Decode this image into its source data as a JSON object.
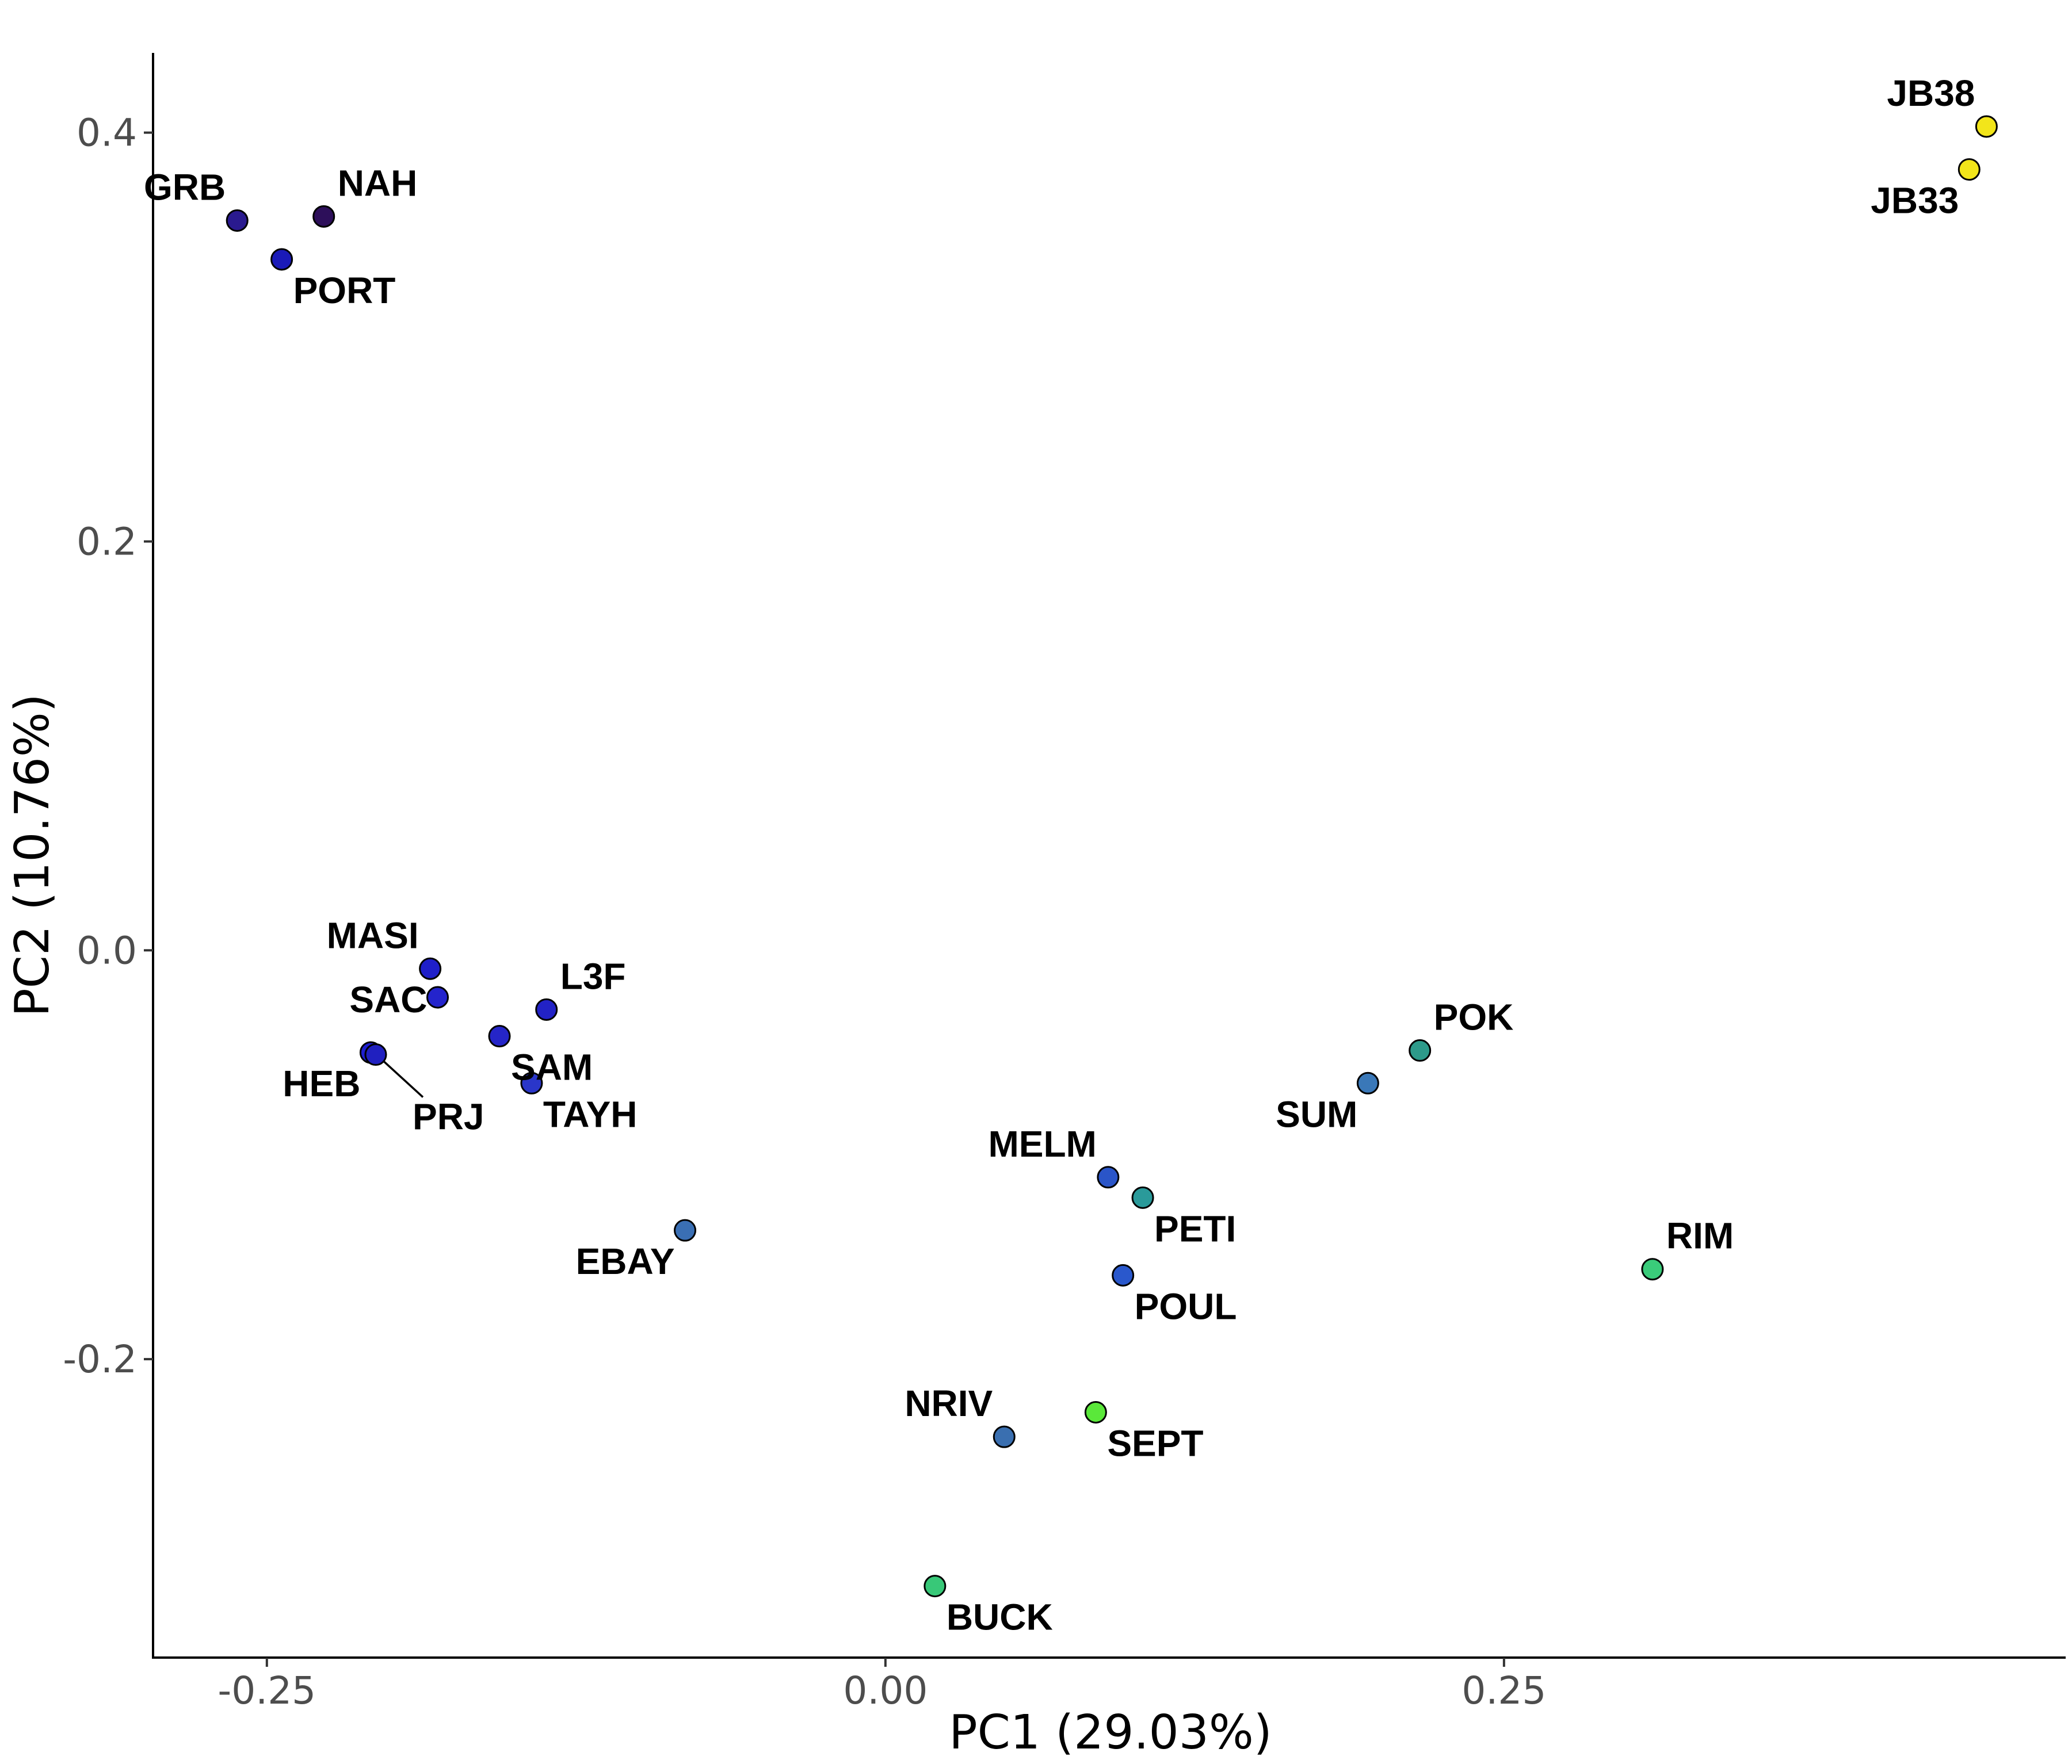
{
  "chart_data": {
    "type": "scatter",
    "xlabel": "PC1 (29.03%)",
    "ylabel": "PC2 (10.76%)",
    "xlim": [
      -0.296,
      0.477
    ],
    "ylim": [
      -0.346,
      0.439
    ],
    "xticks": [
      -0.25,
      0.0,
      0.25
    ],
    "xtick_labels": [
      "-0.25",
      "0.00",
      "0.25"
    ],
    "yticks": [
      -0.2,
      0.0,
      0.2,
      0.4
    ],
    "ytick_labels": [
      "-0.2",
      "0.0",
      "0.2",
      "0.4"
    ],
    "grid": false,
    "legend": "none",
    "points": [
      {
        "label": "GRB",
        "x": -0.262,
        "y": 0.357,
        "color": "#2a1a8f",
        "label_pos": "above-left"
      },
      {
        "label": "NAH",
        "x": -0.227,
        "y": 0.359,
        "color": "#2d0f5a",
        "label_pos": "above-right"
      },
      {
        "label": "PORT",
        "x": -0.244,
        "y": 0.338,
        "color": "#1a1ab8",
        "label_pos": "below-right"
      },
      {
        "label": "JB38",
        "x": 0.445,
        "y": 0.403,
        "color": "#f2e51a",
        "label_pos": "above-left"
      },
      {
        "label": "JB33",
        "x": 0.438,
        "y": 0.382,
        "color": "#f2e51a",
        "label_pos": "below-left"
      },
      {
        "label": "MASI",
        "x": -0.184,
        "y": -0.009,
        "color": "#1f1fc9",
        "label_pos": "above-left"
      },
      {
        "label": "SAC",
        "x": -0.181,
        "y": -0.023,
        "color": "#2424cc",
        "label_pos": "left"
      },
      {
        "label": "L3F",
        "x": -0.137,
        "y": -0.029,
        "color": "#2222c6",
        "label_pos": "above-right"
      },
      {
        "label": "SAM",
        "x": -0.156,
        "y": -0.042,
        "color": "#2525c8",
        "label_pos": "below-right"
      },
      {
        "label": "HEB",
        "x": -0.208,
        "y": -0.05,
        "color": "#1e1ed0",
        "label_pos": "below-left"
      },
      {
        "label": "PRJ",
        "x": -0.206,
        "y": -0.051,
        "color": "#2020c0",
        "label_pos": "leader-below-right"
      },
      {
        "label": "TAYH",
        "x": -0.143,
        "y": -0.065,
        "color": "#2a36c9",
        "label_pos": "below-right"
      },
      {
        "label": "EBAY",
        "x": -0.081,
        "y": -0.137,
        "color": "#3a6fb4",
        "label_pos": "below-left"
      },
      {
        "label": "POK",
        "x": 0.216,
        "y": -0.049,
        "color": "#2d9a8a",
        "label_pos": "above-right"
      },
      {
        "label": "SUM",
        "x": 0.195,
        "y": -0.065,
        "color": "#3a78b8",
        "label_pos": "below-left"
      },
      {
        "label": "MELM",
        "x": 0.09,
        "y": -0.111,
        "color": "#2a55c8",
        "label_pos": "above-left"
      },
      {
        "label": "PETI",
        "x": 0.104,
        "y": -0.121,
        "color": "#2a9a9a",
        "label_pos": "below-right"
      },
      {
        "label": "POUL",
        "x": 0.096,
        "y": -0.159,
        "color": "#2a58cc",
        "label_pos": "below-right"
      },
      {
        "label": "RIM",
        "x": 0.31,
        "y": -0.156,
        "color": "#3acb7a",
        "label_pos": "above-right"
      },
      {
        "label": "NRIV",
        "x": 0.048,
        "y": -0.238,
        "color": "#3a6fb0",
        "label_pos": "above-left"
      },
      {
        "label": "SEPT",
        "x": 0.085,
        "y": -0.226,
        "color": "#5ae83a",
        "label_pos": "below-right"
      },
      {
        "label": "BUCK",
        "x": 0.02,
        "y": -0.311,
        "color": "#38c878",
        "label_pos": "below-right"
      }
    ]
  }
}
